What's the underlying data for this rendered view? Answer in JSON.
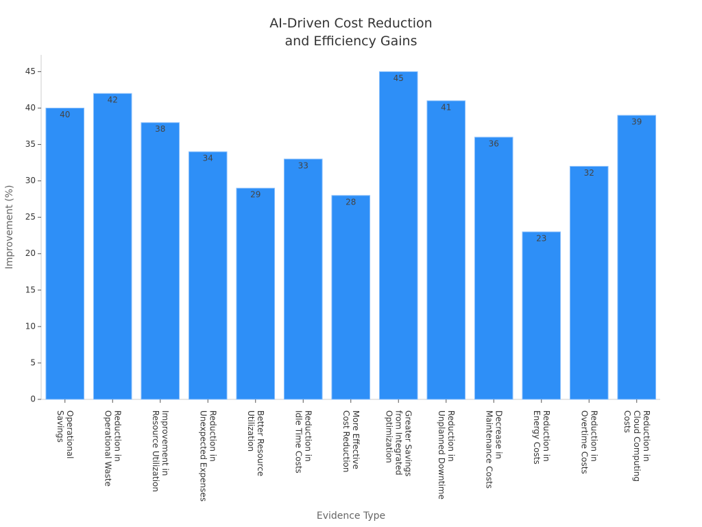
{
  "chart_data": {
    "type": "bar",
    "title": "AI-Driven Cost Reduction\nand Efficiency Gains",
    "x_label": "Evidence Type",
    "y_label": "Improvement (%)",
    "categories": [
      "Operational\nSavings",
      "Reduction in\nOperational Waste",
      "Improvement in\nResource Utilization",
      "Reduction in\nUnexpected Expenses",
      "Better Resource\nUtilization",
      "Reduction in\nIdle Time Costs",
      "More Effective\nCost Reduction",
      "Greater Savings\nfrom Integrated\nOptimization",
      "Reduction in\nUnplanned Downtime",
      "Decrease in\nMaintenance Costs",
      "Reduction in\nEnergy Costs",
      "Reduction in\nOvertime Costs",
      "Reduction in\nCloud Computing\nCosts"
    ],
    "values": [
      40,
      42,
      38,
      34,
      29,
      33,
      28,
      45,
      41,
      36,
      23,
      32,
      39
    ],
    "color": "#2e8ff7",
    "ylim": [
      0,
      47.3
    ],
    "yticks": [
      0,
      5,
      10,
      15,
      20,
      25,
      30,
      35,
      40,
      45
    ]
  }
}
